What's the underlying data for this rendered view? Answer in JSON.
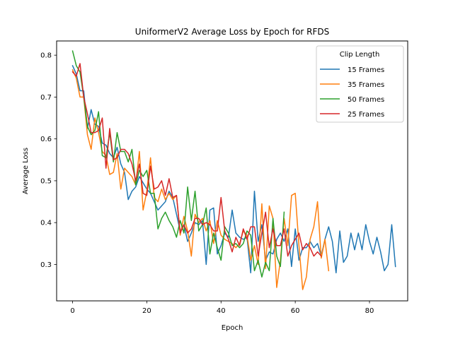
{
  "chart_data": {
    "type": "line",
    "title": "UniformerV2 Average Loss by Epoch for RFDS",
    "xlabel": "Epoch",
    "ylabel": "Average Loss",
    "xlim": [
      -4.3,
      90.3
    ],
    "ylim": [
      0.213,
      0.834
    ],
    "xticks": [
      0,
      20,
      40,
      60,
      80
    ],
    "yticks": [
      0.3,
      0.4,
      0.5,
      0.6,
      0.7,
      0.8
    ],
    "grid": false,
    "legend": {
      "title": "Clip Length",
      "position": "top-right"
    },
    "series": [
      {
        "name": "15 Frames",
        "color": "#1f77b4",
        "values": [
          0.775,
          0.755,
          0.715,
          0.715,
          0.625,
          0.67,
          0.635,
          0.63,
          0.59,
          0.585,
          0.565,
          0.555,
          0.58,
          0.54,
          0.52,
          0.455,
          0.475,
          0.485,
          0.51,
          0.495,
          0.48,
          0.47,
          0.45,
          0.43,
          0.44,
          0.45,
          0.475,
          0.46,
          0.42,
          0.38,
          0.395,
          0.355,
          0.375,
          0.4,
          0.395,
          0.405,
          0.3,
          0.43,
          0.435,
          0.325,
          0.345,
          0.375,
          0.365,
          0.43,
          0.375,
          0.365,
          0.36,
          0.365,
          0.28,
          0.475,
          0.355,
          0.395,
          0.31,
          0.33,
          0.325,
          0.36,
          0.375,
          0.355,
          0.385,
          0.295,
          0.385,
          0.31,
          0.34,
          0.34,
          0.355,
          0.34,
          0.35,
          0.32,
          0.36,
          0.39,
          0.355,
          0.28,
          0.38,
          0.305,
          0.32,
          0.375,
          0.335,
          0.375,
          0.335,
          0.395,
          0.355,
          0.325,
          0.365,
          0.33,
          0.285,
          0.3,
          0.395,
          0.295
        ]
      },
      {
        "name": "35 Frames",
        "color": "#ff7f0e",
        "values": [
          0.765,
          0.745,
          0.7,
          0.7,
          0.61,
          0.575,
          0.65,
          0.615,
          0.57,
          0.56,
          0.515,
          0.52,
          0.565,
          0.48,
          0.53,
          0.52,
          0.51,
          0.49,
          0.57,
          0.43,
          0.475,
          0.555,
          0.46,
          0.45,
          0.48,
          0.455,
          0.47,
          0.455,
          0.465,
          0.37,
          0.415,
          0.38,
          0.32,
          0.42,
          0.4,
          0.41,
          0.38,
          0.405,
          0.35,
          0.405,
          0.37,
          0.36,
          0.355,
          0.35,
          0.34,
          0.35,
          0.38,
          0.37,
          0.31,
          0.345,
          0.3,
          0.445,
          0.29,
          0.44,
          0.41,
          0.245,
          0.31,
          0.41,
          0.345,
          0.465,
          0.47,
          0.345,
          0.24,
          0.27,
          0.36,
          0.39,
          0.45,
          0.315,
          0.36,
          0.285
        ]
      },
      {
        "name": "50 Frames",
        "color": "#2ca02c",
        "values": [
          0.81,
          0.775,
          0.76,
          0.7,
          0.63,
          0.61,
          0.62,
          0.665,
          0.56,
          0.555,
          0.615,
          0.545,
          0.615,
          0.57,
          0.57,
          0.545,
          0.575,
          0.49,
          0.525,
          0.51,
          0.525,
          0.47,
          0.47,
          0.385,
          0.41,
          0.425,
          0.405,
          0.39,
          0.365,
          0.405,
          0.375,
          0.485,
          0.405,
          0.475,
          0.38,
          0.395,
          0.435,
          0.325,
          0.375,
          0.34,
          0.31,
          0.39,
          0.375,
          0.345,
          0.35,
          0.34,
          0.35,
          0.38,
          0.37,
          0.285,
          0.31,
          0.27,
          0.305,
          0.285,
          0.41,
          0.32,
          0.295,
          0.425
        ]
      },
      {
        "name": "25 Frames",
        "color": "#d62728",
        "values": [
          0.76,
          0.75,
          0.78,
          0.7,
          0.66,
          0.615,
          0.615,
          0.62,
          0.65,
          0.53,
          0.625,
          0.55,
          0.555,
          0.575,
          0.575,
          0.565,
          0.54,
          0.5,
          0.54,
          0.47,
          0.465,
          0.535,
          0.48,
          0.485,
          0.5,
          0.465,
          0.505,
          0.46,
          0.465,
          0.375,
          0.395,
          0.375,
          0.385,
          0.41,
          0.41,
          0.395,
          0.4,
          0.395,
          0.38,
          0.38,
          0.46,
          0.38,
          0.36,
          0.33,
          0.365,
          0.345,
          0.385,
          0.36,
          0.39,
          0.39,
          0.32,
          0.375,
          0.425,
          0.34,
          0.385,
          0.345,
          0.345,
          0.385,
          0.32,
          0.345,
          0.36,
          0.375,
          0.335,
          0.35,
          0.34,
          0.32,
          0.33,
          0.32
        ]
      }
    ]
  }
}
